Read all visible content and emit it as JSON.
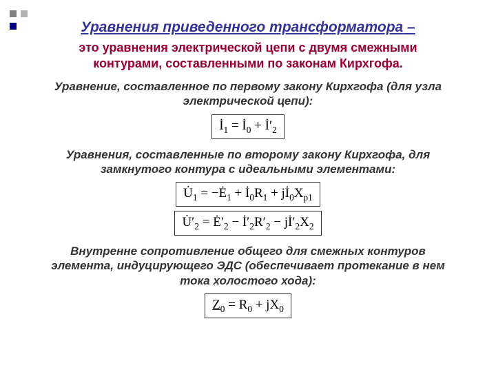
{
  "colors": {
    "title": "#333399",
    "subtitle": "#990033",
    "text": "#333333",
    "bullet1": "#808080",
    "bullet2": "#b2b2b2",
    "bullet3": "#000080",
    "border": "#333333",
    "bg": "#ffffff"
  },
  "title": "Уравнения приведенного трансформатора",
  "title_dash": " –",
  "subtitle": "это уравнения электрической цепи с двумя смежными контурами, составленными по законам Кирхгофа.",
  "section1": "Уравнение, составленное по первому закону Кирхгофа (для узла электрической цепи):",
  "section2": "Уравнения, составленные по второму закону Кирхгофа, для замкнутого контура с идеальными элементами:",
  "section3": "Внутренне сопротивление общего для смежных контуров элемента, индуцирующего ЭДС (обеспечивает протекание в нем тока холостого хода):",
  "eq1_parts": {
    "lhs_sym": "İ",
    "lhs_sub": "1",
    "eq": " = ",
    "t1_sym": "İ",
    "t1_sub": "0",
    "plus": " + ",
    "t2_sym": "İ′",
    "t2_sub": "2"
  },
  "eq2_parts": {
    "lhs_sym": "U̇",
    "lhs_sub": "1",
    "eq": " = −",
    "e_sym": "Ė",
    "e_sub": "1",
    "p1": " + ",
    "i_sym": "İ",
    "i_sub": "0",
    "r": "R",
    "r_sub": "1",
    "p2": " + j",
    "x": "X",
    "x_sub": "р1"
  },
  "eq3_parts": {
    "lhs_sym": "U̇′",
    "lhs_sub": "2",
    "eq": " = ",
    "e_sym": "Ė′",
    "e_sub": "2",
    "m1": " − ",
    "i_sym": "İ′",
    "i_sub": "2",
    "r": "R′",
    "r_sub": "2",
    "m2": " − j",
    "x": "X",
    "x_sub": "2",
    "pre_x_sym": "İ′",
    "pre_x_sub": "2"
  },
  "eq4_parts": {
    "z": "Z",
    "z_sub": "0",
    "eq": " = R",
    "r_sub": "0",
    "p": " + jX",
    "x_sub": "0"
  }
}
